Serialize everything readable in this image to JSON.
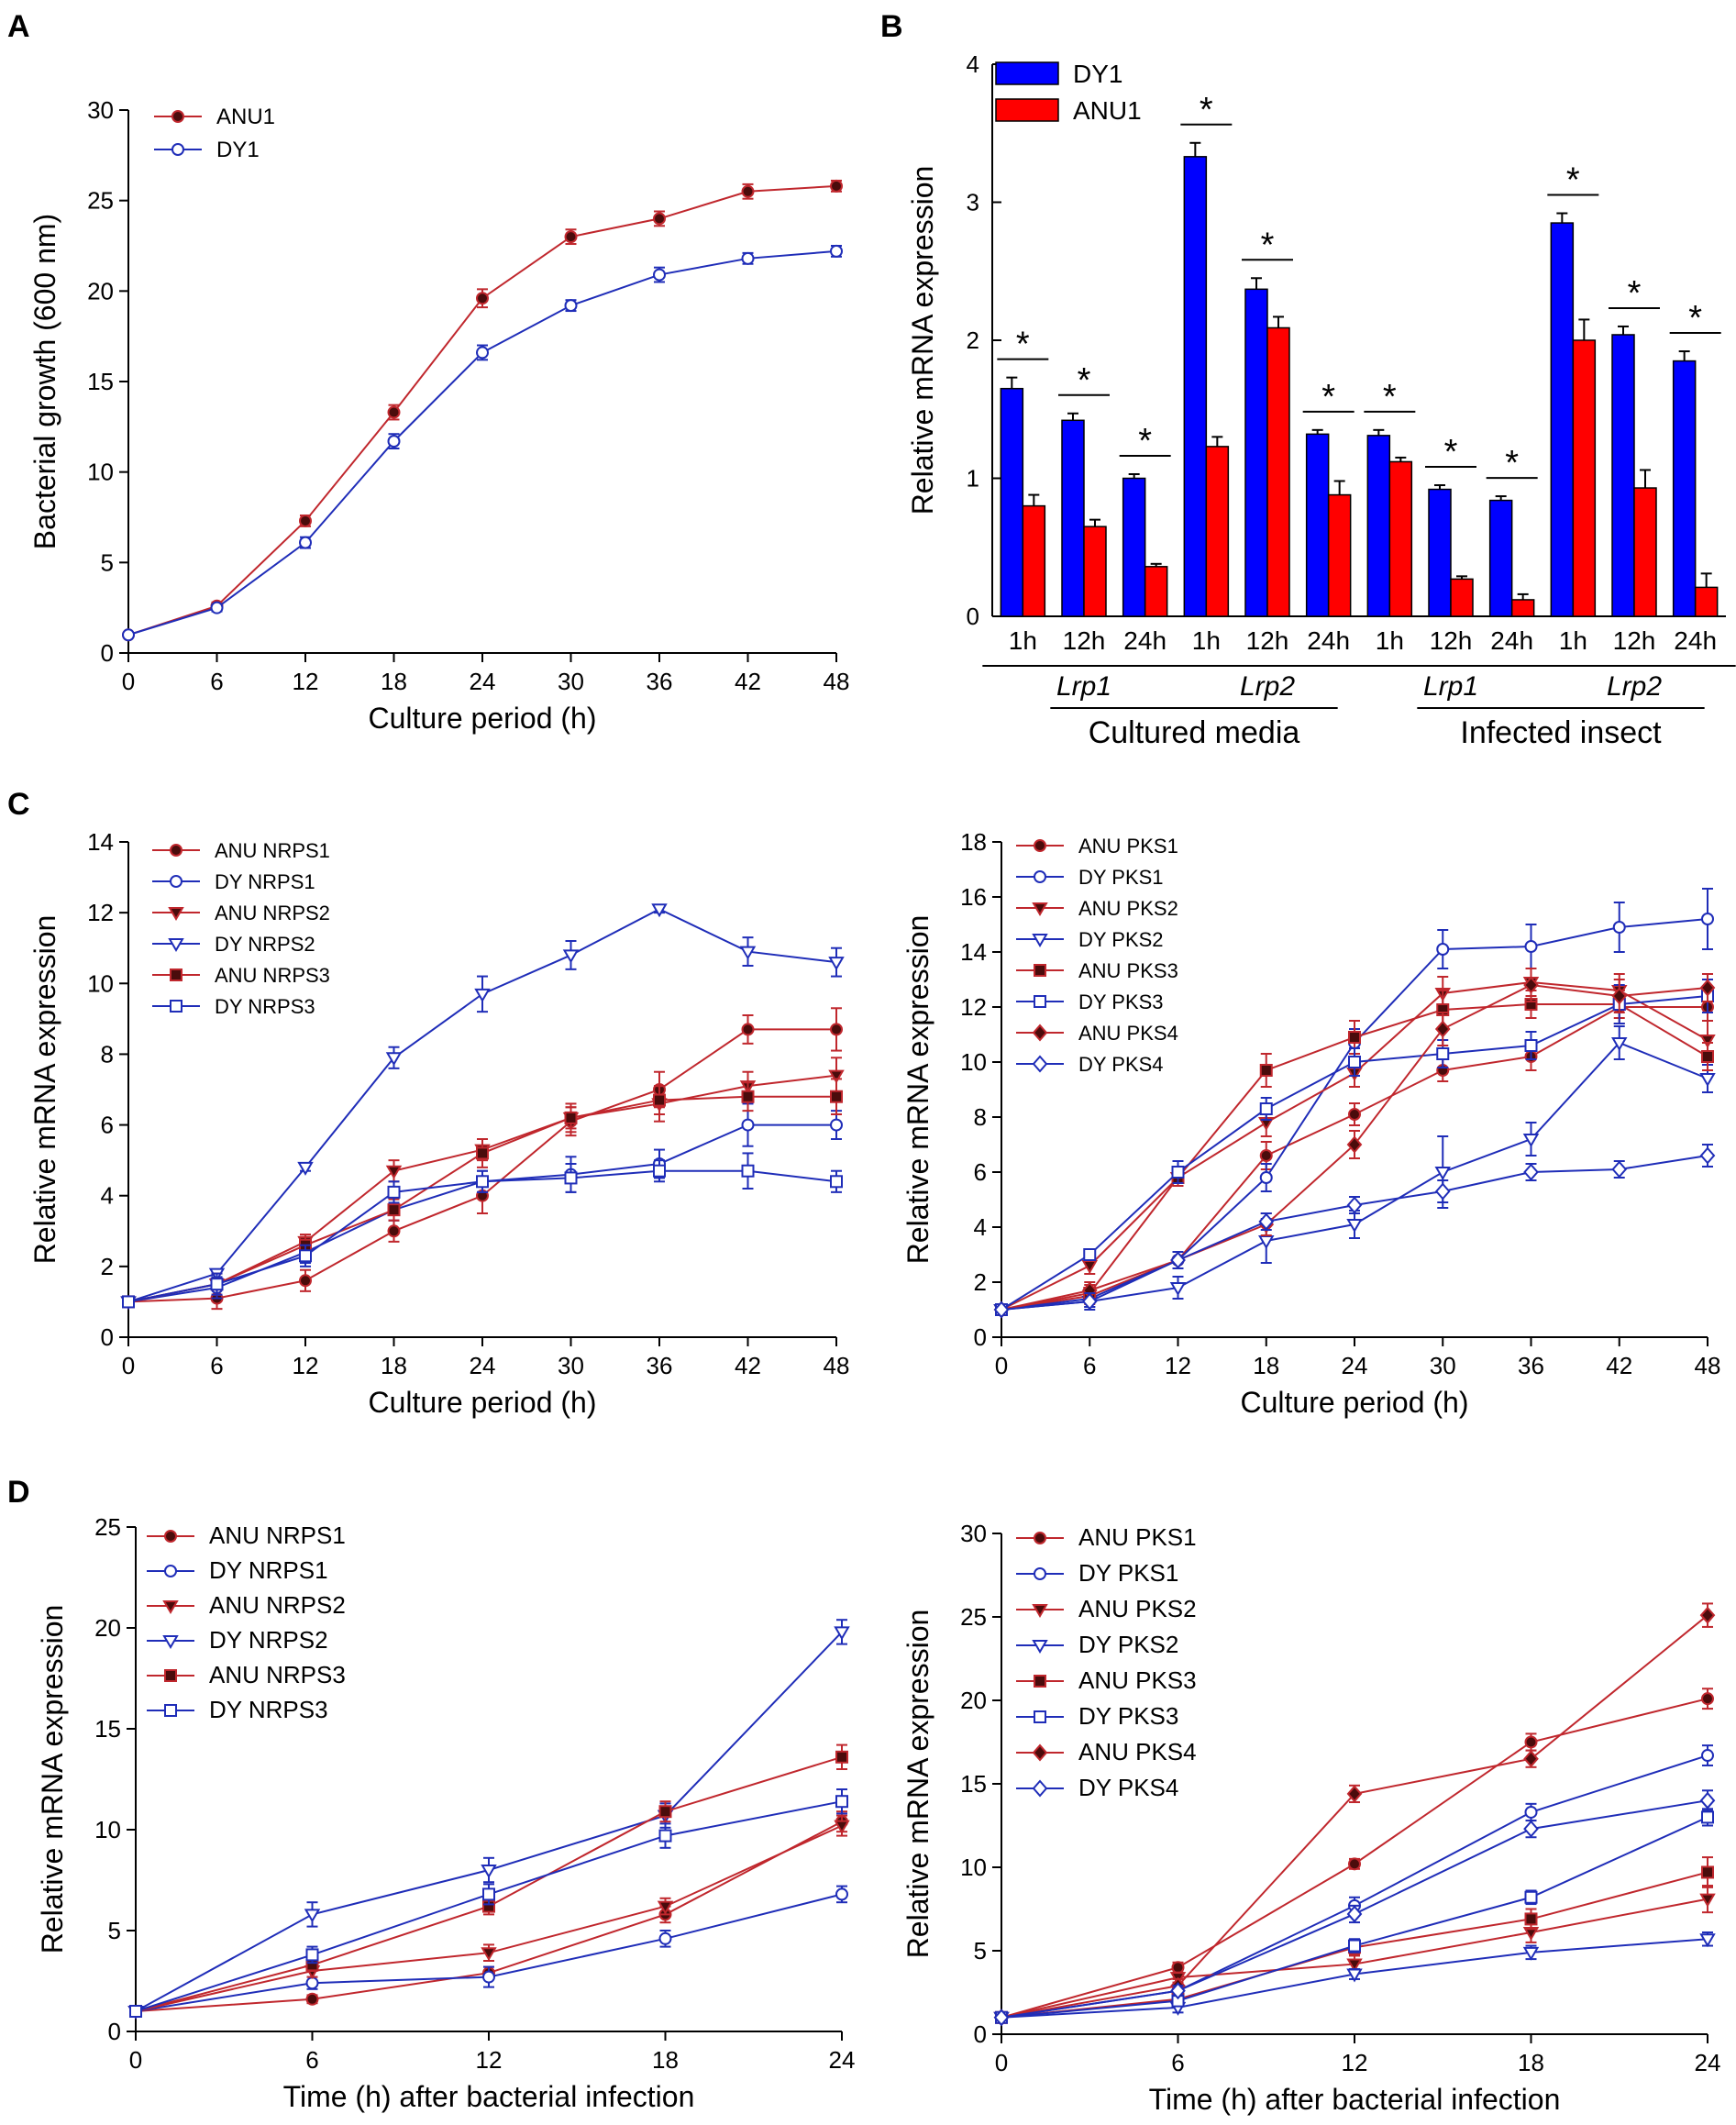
{
  "colors": {
    "anu": "#c0272d",
    "dy": "#1f2db8",
    "bar_dy": "#0000ff",
    "bar_anu": "#ff0000",
    "fill_anu": "#4a0c0c"
  },
  "panels": {
    "A": "A",
    "B": "B",
    "C": "C",
    "D": "D"
  },
  "chart_data": [
    {
      "id": "A",
      "type": "line",
      "xlabel": "Culture period (h)",
      "ylabel": "Bacterial growth (600 nm)",
      "xlim": [
        0,
        48
      ],
      "ylim": [
        0,
        30
      ],
      "xticks": [
        0,
        6,
        12,
        18,
        24,
        30,
        36,
        42,
        48
      ],
      "yticks": [
        0,
        5,
        10,
        15,
        20,
        25,
        30
      ],
      "legend_position": "top-left",
      "x": [
        0,
        6,
        12,
        18,
        24,
        30,
        36,
        42,
        48
      ],
      "series": [
        {
          "name": "ANU1",
          "marker": "circle-filled",
          "color": "anu",
          "values": [
            1.0,
            2.6,
            7.3,
            13.3,
            19.6,
            23.0,
            24.0,
            25.5,
            25.8
          ],
          "err": [
            0.1,
            0.2,
            0.3,
            0.4,
            0.5,
            0.4,
            0.4,
            0.4,
            0.3
          ]
        },
        {
          "name": "DY1",
          "marker": "circle-open",
          "color": "dy",
          "values": [
            1.0,
            2.5,
            6.1,
            11.7,
            16.6,
            19.2,
            20.9,
            21.8,
            22.2
          ],
          "err": [
            0.1,
            0.2,
            0.3,
            0.4,
            0.4,
            0.3,
            0.4,
            0.3,
            0.3
          ]
        }
      ]
    },
    {
      "id": "B",
      "type": "bar",
      "ylabel": "Relative mRNA expression",
      "ylim": [
        0,
        4
      ],
      "yticks": [
        0,
        1,
        2,
        3,
        4
      ],
      "legend_position": "top-left",
      "categories": [
        "1h",
        "12h",
        "24h",
        "1h",
        "12h",
        "24h",
        "1h",
        "12h",
        "24h",
        "1h",
        "12h",
        "24h"
      ],
      "gene_groups": [
        "Lrp1",
        "Lrp2",
        "Lrp1",
        "Lrp2"
      ],
      "condition_groups": [
        "Cultured media",
        "Infected insect"
      ],
      "significance": "*",
      "series": [
        {
          "name": "DY1",
          "color": "bar_dy",
          "values": [
            1.65,
            1.42,
            1.0,
            3.33,
            2.37,
            1.32,
            1.31,
            0.92,
            0.84,
            2.85,
            2.04,
            1.85
          ],
          "err": [
            0.08,
            0.05,
            0.03,
            0.1,
            0.08,
            0.03,
            0.04,
            0.03,
            0.03,
            0.07,
            0.06,
            0.07
          ]
        },
        {
          "name": "ANU1",
          "color": "bar_anu",
          "values": [
            0.8,
            0.65,
            0.36,
            1.23,
            2.09,
            0.88,
            1.12,
            0.27,
            0.12,
            2.0,
            0.93,
            0.21
          ],
          "err": [
            0.08,
            0.05,
            0.02,
            0.07,
            0.08,
            0.1,
            0.03,
            0.02,
            0.04,
            0.15,
            0.13,
            0.1
          ]
        }
      ]
    },
    {
      "id": "C-left",
      "type": "line",
      "xlabel": "Culture period (h)",
      "ylabel": "Relative mRNA expression",
      "xlim": [
        0,
        48
      ],
      "ylim": [
        0,
        14
      ],
      "xticks": [
        0,
        6,
        12,
        18,
        24,
        30,
        36,
        42,
        48
      ],
      "yticks": [
        0,
        2,
        4,
        6,
        8,
        10,
        12,
        14
      ],
      "legend_position": "top-left",
      "x": [
        0,
        6,
        12,
        18,
        24,
        30,
        36,
        42,
        48
      ],
      "series": [
        {
          "name": "ANU NRPS1",
          "marker": "circle-filled",
          "color": "anu",
          "values": [
            1.0,
            1.1,
            1.6,
            3.0,
            4.0,
            6.1,
            7.0,
            8.7,
            8.7
          ],
          "err": [
            0.1,
            0.3,
            0.3,
            0.3,
            0.5,
            0.4,
            0.5,
            0.4,
            0.6
          ]
        },
        {
          "name": "DY NRPS1",
          "marker": "circle-open",
          "color": "dy",
          "values": [
            1.0,
            1.4,
            2.4,
            3.6,
            4.4,
            4.6,
            4.9,
            6.0,
            6.0
          ],
          "err": [
            0.1,
            0.3,
            0.3,
            0.3,
            0.3,
            0.5,
            0.4,
            0.6,
            0.4
          ]
        },
        {
          "name": "ANU NRPS2",
          "marker": "tri-down-filled",
          "color": "anu",
          "values": [
            1.0,
            1.5,
            2.7,
            4.7,
            5.3,
            6.2,
            6.6,
            7.1,
            7.4
          ],
          "err": [
            0.1,
            0.3,
            0.2,
            0.3,
            0.3,
            0.4,
            0.5,
            0.4,
            0.5
          ]
        },
        {
          "name": "DY NRPS2",
          "marker": "tri-down-open",
          "color": "dy",
          "values": [
            1.0,
            1.8,
            4.8,
            7.9,
            9.7,
            10.8,
            12.1,
            10.9,
            10.6
          ],
          "err": [
            0.1,
            0.1,
            0.1,
            0.3,
            0.5,
            0.4,
            0.1,
            0.4,
            0.4
          ]
        },
        {
          "name": "ANU NRPS3",
          "marker": "square-filled",
          "color": "anu",
          "values": [
            1.0,
            1.5,
            2.6,
            3.6,
            5.2,
            6.2,
            6.7,
            6.8,
            6.8
          ],
          "err": [
            0.1,
            0.3,
            0.3,
            0.3,
            0.4,
            0.3,
            0.4,
            0.4,
            0.5
          ]
        },
        {
          "name": "DY NRPS3",
          "marker": "square-open",
          "color": "dy",
          "values": [
            1.0,
            1.5,
            2.3,
            4.1,
            4.4,
            4.5,
            4.7,
            4.7,
            4.4
          ],
          "err": [
            0.1,
            0.3,
            0.3,
            0.3,
            0.3,
            0.4,
            0.3,
            0.5,
            0.3
          ]
        }
      ]
    },
    {
      "id": "C-right",
      "type": "line",
      "xlabel": "Culture period (h)",
      "ylabel": "Relative mRNA expression",
      "xlim": [
        0,
        48
      ],
      "ylim": [
        0,
        18
      ],
      "xticks": [
        0,
        6,
        12,
        18,
        24,
        30,
        36,
        42,
        48
      ],
      "yticks": [
        0,
        2,
        4,
        6,
        8,
        10,
        12,
        14,
        16,
        18
      ],
      "legend_position": "top-left",
      "x": [
        0,
        6,
        12,
        18,
        24,
        30,
        36,
        42,
        48
      ],
      "series": [
        {
          "name": "ANU PKS1",
          "marker": "circle-filled",
          "color": "anu",
          "values": [
            1.0,
            1.5,
            2.8,
            6.6,
            8.1,
            9.7,
            10.2,
            12.0,
            12.0
          ],
          "err": [
            0.1,
            0.3,
            0.3,
            0.5,
            0.4,
            0.4,
            0.5,
            0.6,
            0.5
          ]
        },
        {
          "name": "DY PKS1",
          "marker": "circle-open",
          "color": "dy",
          "values": [
            1.0,
            1.4,
            2.8,
            5.8,
            10.7,
            14.1,
            14.2,
            14.9,
            15.2
          ],
          "err": [
            0.1,
            0.3,
            0.3,
            0.5,
            0.5,
            0.7,
            0.8,
            0.9,
            1.1
          ]
        },
        {
          "name": "ANU PKS2",
          "marker": "tri-down-filled",
          "color": "anu",
          "values": [
            1.0,
            2.6,
            5.8,
            7.8,
            9.6,
            12.5,
            12.9,
            12.6,
            10.8
          ],
          "err": [
            0.1,
            0.3,
            0.3,
            0.5,
            0.5,
            0.6,
            0.5,
            0.6,
            0.7
          ]
        },
        {
          "name": "DY PKS2",
          "marker": "tri-down-open",
          "color": "dy",
          "values": [
            1.0,
            1.3,
            1.8,
            3.5,
            4.1,
            6.0,
            7.2,
            10.7,
            9.4
          ],
          "err": [
            0.1,
            0.2,
            0.4,
            0.8,
            0.5,
            1.3,
            0.6,
            0.6,
            0.5
          ]
        },
        {
          "name": "ANU PKS3",
          "marker": "square-filled",
          "color": "anu",
          "values": [
            1.0,
            1.6,
            5.8,
            9.7,
            10.9,
            11.9,
            12.1,
            12.1,
            10.2
          ],
          "err": [
            0.1,
            0.3,
            0.3,
            0.6,
            0.6,
            0.7,
            0.5,
            0.5,
            0.5
          ]
        },
        {
          "name": "DY PKS3",
          "marker": "square-open",
          "color": "dy",
          "values": [
            1.0,
            3.0,
            6.0,
            8.3,
            10.0,
            10.3,
            10.6,
            12.1,
            12.4
          ],
          "err": [
            0.1,
            0.2,
            0.4,
            0.4,
            0.5,
            0.5,
            0.5,
            0.7,
            0.6
          ]
        },
        {
          "name": "ANU PKS4",
          "marker": "diamond-filled",
          "color": "anu",
          "values": [
            1.0,
            1.7,
            2.8,
            4.1,
            7.0,
            11.2,
            12.8,
            12.4,
            12.7
          ],
          "err": [
            0.1,
            0.3,
            0.3,
            0.4,
            0.5,
            0.6,
            0.6,
            0.6,
            0.5
          ]
        },
        {
          "name": "DY PKS4",
          "marker": "diamond-open",
          "color": "dy",
          "values": [
            1.0,
            1.3,
            2.8,
            4.2,
            4.8,
            5.3,
            6.0,
            6.1,
            6.6
          ],
          "err": [
            0.1,
            0.3,
            0.3,
            0.3,
            0.3,
            0.4,
            0.3,
            0.3,
            0.4
          ]
        }
      ]
    },
    {
      "id": "D-left",
      "type": "line",
      "xlabel": "Time (h) after bacterial infection",
      "ylabel": "Relative mRNA expression",
      "xlim": [
        0,
        24
      ],
      "ylim": [
        0,
        25
      ],
      "xticks": [
        0,
        6,
        12,
        18,
        24
      ],
      "yticks": [
        0,
        5,
        10,
        15,
        20,
        25
      ],
      "legend_position": "top-left",
      "x": [
        0,
        6,
        12,
        18,
        24
      ],
      "series": [
        {
          "name": "ANU NRPS1",
          "marker": "circle-filled",
          "color": "anu",
          "values": [
            1.0,
            1.6,
            2.9,
            5.8,
            10.4
          ],
          "err": [
            0.1,
            0.2,
            0.3,
            0.4,
            0.5
          ]
        },
        {
          "name": "DY NRPS1",
          "marker": "circle-open",
          "color": "dy",
          "values": [
            1.0,
            2.4,
            2.7,
            4.6,
            6.8
          ],
          "err": [
            0.1,
            0.3,
            0.5,
            0.4,
            0.4
          ]
        },
        {
          "name": "ANU NRPS2",
          "marker": "tri-down-filled",
          "color": "anu",
          "values": [
            1.0,
            3.0,
            3.9,
            6.2,
            10.2
          ],
          "err": [
            0.1,
            0.3,
            0.4,
            0.4,
            0.5
          ]
        },
        {
          "name": "DY NRPS2",
          "marker": "tri-down-open",
          "color": "dy",
          "values": [
            1.0,
            5.8,
            8.0,
            10.7,
            19.8
          ],
          "err": [
            0.1,
            0.6,
            0.6,
            0.6,
            0.6
          ]
        },
        {
          "name": "ANU NRPS3",
          "marker": "square-filled",
          "color": "anu",
          "values": [
            1.0,
            3.3,
            6.2,
            10.9,
            13.6
          ],
          "err": [
            0.1,
            0.3,
            0.4,
            0.5,
            0.6
          ]
        },
        {
          "name": "DY NRPS3",
          "marker": "square-open",
          "color": "dy",
          "values": [
            1.0,
            3.8,
            6.8,
            9.7,
            11.4
          ],
          "err": [
            0.1,
            0.4,
            0.5,
            0.6,
            0.6
          ]
        }
      ]
    },
    {
      "id": "D-right",
      "type": "line",
      "xlabel": "Time (h) after bacterial infection",
      "ylabel": "Relative mRNA expression",
      "xlim": [
        0,
        24
      ],
      "ylim": [
        0,
        30
      ],
      "xticks": [
        0,
        6,
        12,
        18,
        24
      ],
      "yticks": [
        0,
        5,
        10,
        15,
        20,
        25,
        30
      ],
      "legend_position": "top-left",
      "x": [
        0,
        6,
        12,
        18,
        24
      ],
      "series": [
        {
          "name": "ANU PKS1",
          "marker": "circle-filled",
          "color": "anu",
          "values": [
            1.0,
            4.0,
            10.2,
            17.5,
            20.1
          ],
          "err": [
            0.1,
            0.3,
            0.3,
            0.5,
            0.6
          ]
        },
        {
          "name": "DY PKS1",
          "marker": "circle-open",
          "color": "dy",
          "values": [
            1.0,
            2.6,
            7.7,
            13.3,
            16.7
          ],
          "err": [
            0.1,
            0.3,
            0.5,
            0.5,
            0.6
          ]
        },
        {
          "name": "ANU PKS2",
          "marker": "tri-down-filled",
          "color": "anu",
          "values": [
            1.0,
            3.4,
            4.2,
            6.1,
            8.1
          ],
          "err": [
            0.1,
            0.3,
            0.5,
            0.6,
            0.8
          ]
        },
        {
          "name": "DY PKS2",
          "marker": "tri-down-open",
          "color": "dy",
          "values": [
            1.0,
            1.6,
            3.6,
            4.9,
            5.7
          ],
          "err": [
            0.1,
            0.3,
            0.3,
            0.4,
            0.4
          ]
        },
        {
          "name": "ANU PKS3",
          "marker": "square-filled",
          "color": "anu",
          "values": [
            1.0,
            2.1,
            5.2,
            6.9,
            9.7
          ],
          "err": [
            0.1,
            0.3,
            0.4,
            0.6,
            0.9
          ]
        },
        {
          "name": "DY PKS3",
          "marker": "square-open",
          "color": "dy",
          "values": [
            1.0,
            2.0,
            5.3,
            8.2,
            13.0
          ],
          "err": [
            0.1,
            0.3,
            0.4,
            0.4,
            0.5
          ]
        },
        {
          "name": "ANU PKS4",
          "marker": "diamond-filled",
          "color": "anu",
          "values": [
            1.0,
            2.9,
            14.4,
            16.5,
            25.1
          ],
          "err": [
            0.1,
            0.4,
            0.5,
            0.5,
            0.7
          ]
        },
        {
          "name": "DY PKS4",
          "marker": "diamond-open",
          "color": "dy",
          "values": [
            1.0,
            2.6,
            7.2,
            12.3,
            14.0
          ],
          "err": [
            0.1,
            0.3,
            0.5,
            0.5,
            0.6
          ]
        }
      ]
    }
  ]
}
